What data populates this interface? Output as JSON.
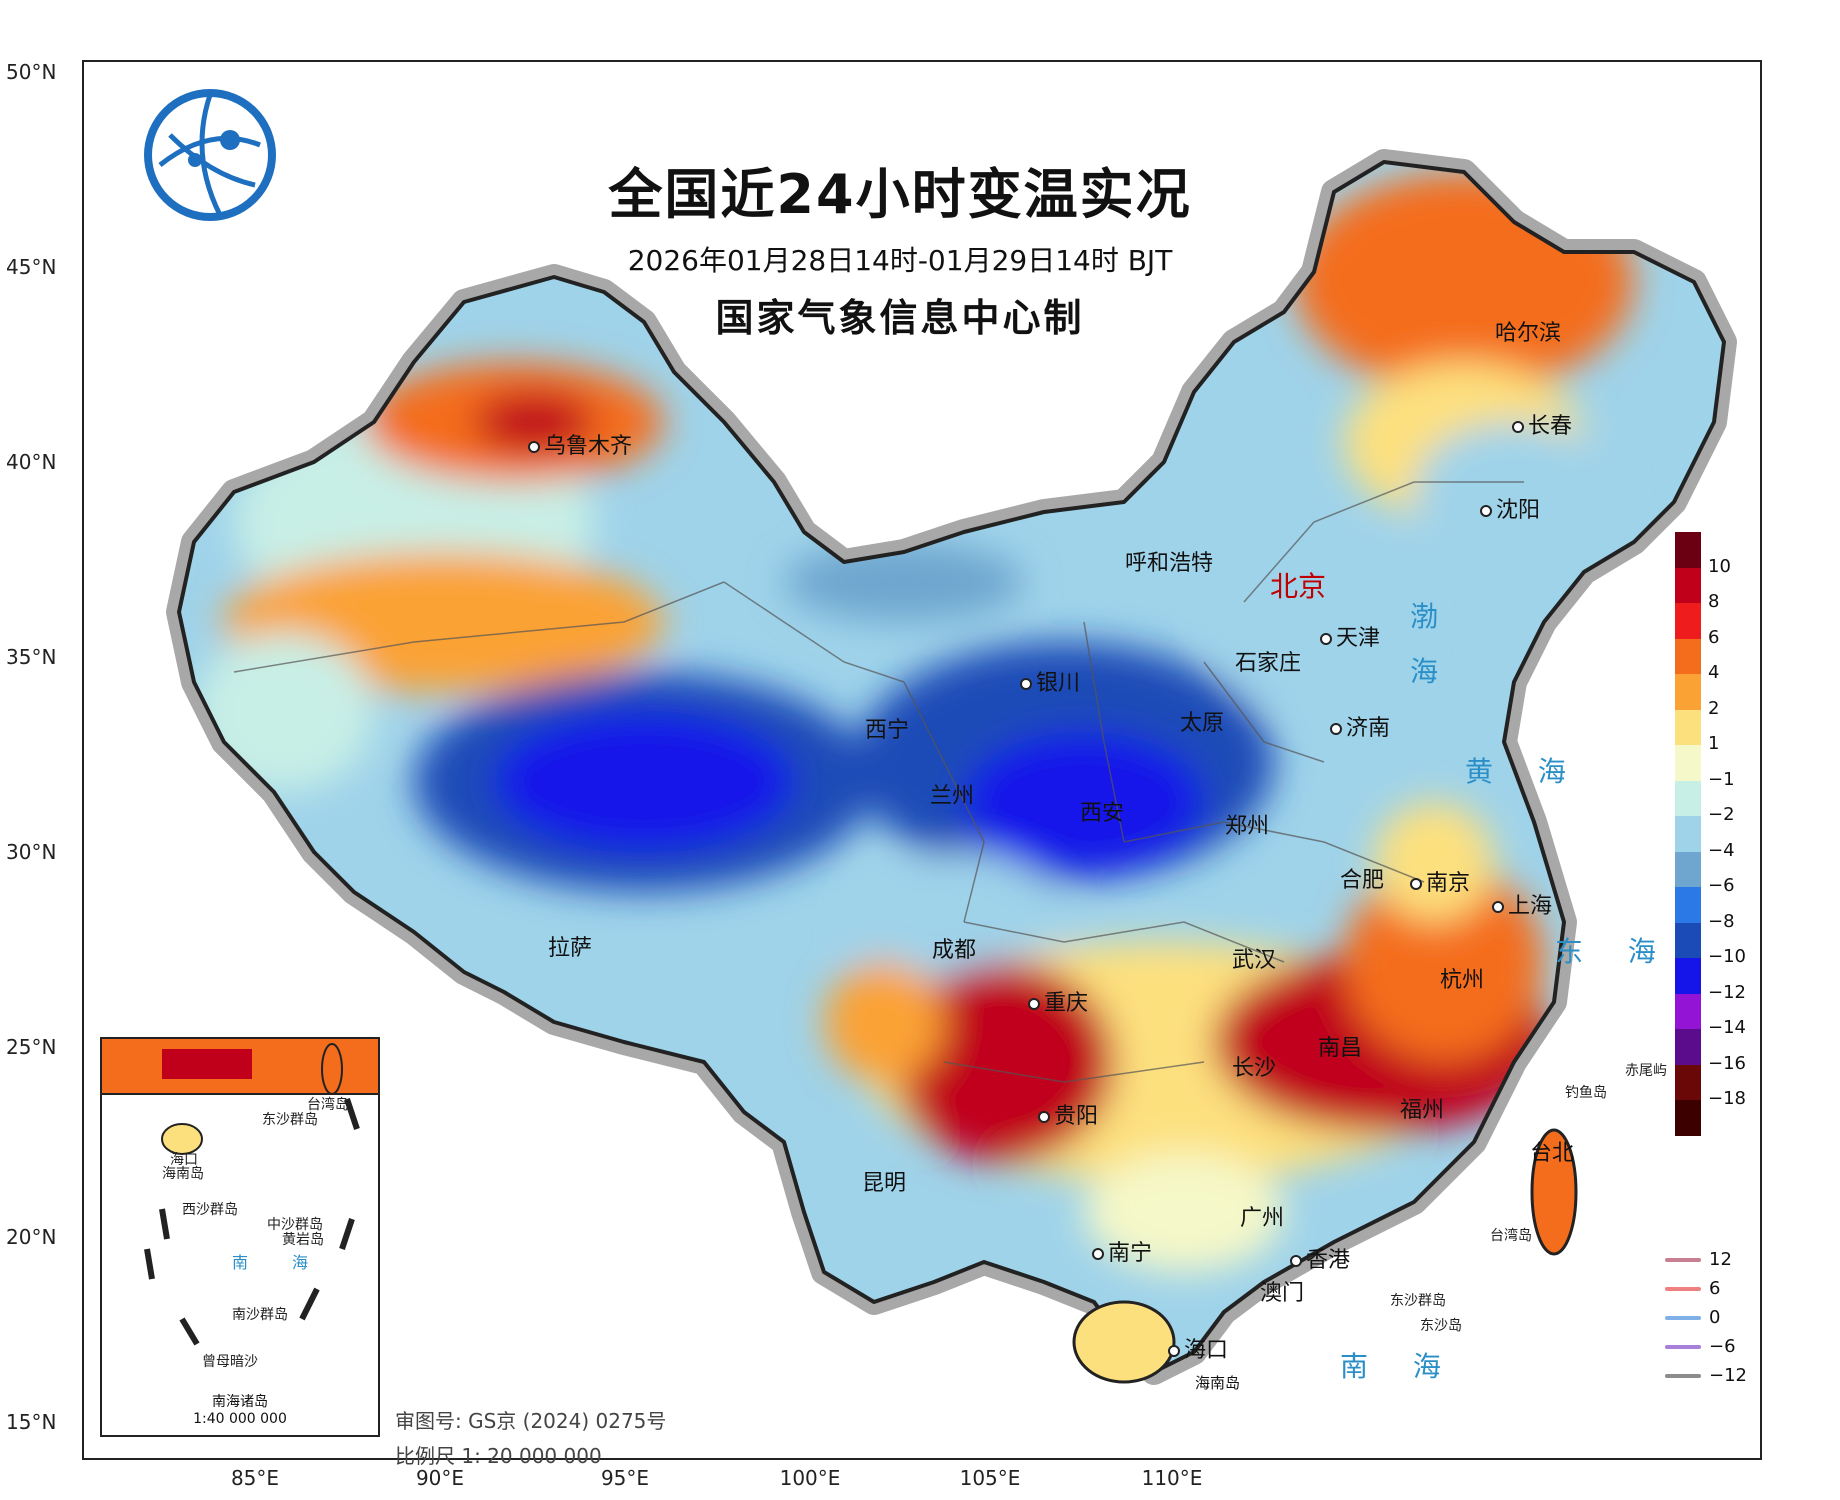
{
  "title": "全国近24小时变温实况",
  "time_range": "2026年01月28日14时-01月29日14时 BJT",
  "organization": "国家气象信息中心制",
  "latitude_labels": [
    "50°N",
    "45°N",
    "40°N",
    "35°N",
    "30°N",
    "25°N",
    "20°N",
    "15°N"
  ],
  "longitude_labels": [
    "85°E",
    "90°E",
    "95°E",
    "100°E",
    "105°E",
    "110°E"
  ],
  "cities": {
    "beijing": "北京",
    "tianjin": "天津",
    "shijiazhuang": "石家庄",
    "taiyuan": "太原",
    "jinan": "济南",
    "hohhot": "呼和浩特",
    "yinchuan": "银川",
    "xining": "西宁",
    "lanzhou": "兰州",
    "xian": "西安",
    "zhengzhou": "郑州",
    "urumqi": "乌鲁木齐",
    "lhasa": "拉萨",
    "chengdu": "成都",
    "chongqing": "重庆",
    "guiyang": "贵阳",
    "kunming": "昆明",
    "nanning": "南宁",
    "guangzhou": "广州",
    "hongkong": "香港",
    "macau": "澳门",
    "haikou": "海口",
    "hainan_island": "海南岛",
    "changsha": "长沙",
    "wuhan": "武汉",
    "nanchang": "南昌",
    "hefei": "合肥",
    "nanjing": "南京",
    "shanghai": "上海",
    "hangzhou": "杭州",
    "fuzhou": "福州",
    "taipei": "台北",
    "harbin": "哈尔滨",
    "changchun": "长春",
    "shenyang": "沈阳"
  },
  "seas": {
    "bohai_1": "渤",
    "bohai_2": "海",
    "yellow_sea": "黄 海",
    "east_sea": "东 海",
    "south_sea": "南 海"
  },
  "islands": {
    "diaoyu": "钓鱼岛",
    "chiwei": "赤尾屿",
    "taiwan_island": "台湾岛",
    "dongsha_islands": "东沙群岛",
    "dongsha_island": "东沙岛"
  },
  "legend": {
    "colors": [
      "#6b0012",
      "#c0001a",
      "#ee1c1c",
      "#f46d1c",
      "#fba234",
      "#fde07e",
      "#f5f8c8",
      "#c8efe6",
      "#9fd3ea",
      "#6ea6cf",
      "#2b79e6",
      "#1a4bb7",
      "#1515ea",
      "#9414d6",
      "#5a0c8c",
      "#6a0808",
      "#3d0000"
    ],
    "labels": [
      "10",
      "8",
      "6",
      "4",
      "2",
      "1",
      "−1",
      "−2",
      "−4",
      "−6",
      "−8",
      "−10",
      "−12",
      "−14",
      "−16",
      "−18"
    ]
  },
  "line_legend": [
    {
      "label": "12",
      "color": "#c97f92"
    },
    {
      "label": "6",
      "color": "#f08080"
    },
    {
      "label": "0",
      "color": "#7fb0e8"
    },
    {
      "label": "−6",
      "color": "#a87fd9"
    },
    {
      "label": "−12",
      "color": "#8c8c8c"
    }
  ],
  "inset": {
    "caption": "南海诸岛",
    "scale": "1:40 000 000",
    "labels": [
      "海口",
      "海南岛",
      "西沙群岛",
      "中沙群岛",
      "黄岩岛",
      "南沙群岛",
      "曾母暗沙",
      "东沙群岛",
      "台湾岛"
    ],
    "sea_1": "南",
    "sea_2": "海"
  },
  "map_review_number": "审图号: GS京 (2024) 0275号",
  "scale_text": "比例尺 1: 20 000 000"
}
